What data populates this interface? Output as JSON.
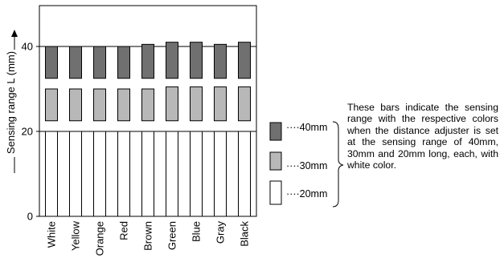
{
  "chart_data": {
    "type": "bar",
    "ylabel": "Sensing range L (mm)",
    "ylim": [
      0,
      50
    ],
    "yticks": [
      0,
      20,
      40
    ],
    "categories": [
      "White",
      "Yellow",
      "Orange",
      "Red",
      "Brown",
      "Green",
      "Blue",
      "Gray",
      "Black"
    ],
    "category_labels": [
      "White",
      "Yellow",
      "Orange",
      "Red",
      "Brown",
      "Green",
      "Blue",
      "Gray",
      "Black"
    ],
    "series": [
      {
        "name": "40mm",
        "color": "#707070",
        "bottom": 32.5,
        "values": [
          40.0,
          40.0,
          40.0,
          40.0,
          40.5,
          41.0,
          41.0,
          40.5,
          41.0
        ]
      },
      {
        "name": "30mm",
        "color": "#b8b8b8",
        "bottom": 22.5,
        "values": [
          30.0,
          30.0,
          30.0,
          30.0,
          30.0,
          30.5,
          30.5,
          30.5,
          30.5
        ]
      },
      {
        "name": "20mm",
        "color": "#ffffff",
        "bottom": 0,
        "values": [
          20.0,
          20.0,
          20.0,
          20.0,
          20.0,
          20.0,
          20.0,
          20.0,
          20.0
        ]
      }
    ],
    "gridlines": [
      20,
      40
    ],
    "legend": {
      "placement": "right",
      "items": [
        {
          "label": "····40mm",
          "color": "#707070"
        },
        {
          "label": "····30mm",
          "color": "#b8b8b8"
        },
        {
          "label": "····20mm",
          "color": "#ffffff"
        }
      ]
    },
    "annotation": "These bars indicate the sensing range with the respective colors when the distance adjuster is set at the sensing range of 40mm, 30mm and 20mm long, each, with white color."
  }
}
